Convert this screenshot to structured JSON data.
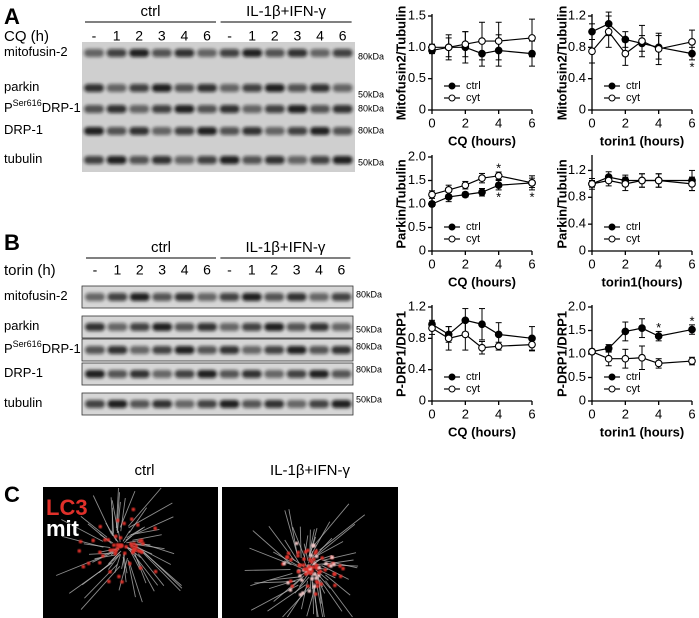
{
  "panels": {
    "A": {
      "letter": "A",
      "groups": [
        "ctrl",
        "IL-1β+IFN-γ"
      ],
      "time_label": "CQ (h)",
      "lanes": [
        "-",
        "1",
        "2",
        "3",
        "4",
        "6",
        "-",
        "1",
        "2",
        "3",
        "4",
        "6"
      ],
      "rows": [
        {
          "label": "mitofusin-2",
          "size": "80kDa"
        },
        {
          "label": "parkin",
          "size": "50kDa"
        },
        {
          "label_prefix": "P",
          "label_sup": "Ser616",
          "label": "DRP-1",
          "size": "80kDa"
        },
        {
          "label": "DRP-1",
          "size": "80kDa"
        },
        {
          "label": "tubulin",
          "size": "50kDa"
        }
      ]
    },
    "B": {
      "letter": "B",
      "groups": [
        "ctrl",
        "IL-1β+IFN-γ"
      ],
      "time_label": "torin (h)",
      "lanes": [
        "-",
        "1",
        "2",
        "3",
        "4",
        "6",
        "-",
        "1",
        "2",
        "3",
        "4",
        "6"
      ],
      "rows": [
        {
          "label": "mitofusin-2",
          "size": "80kDa"
        },
        {
          "label": "parkin",
          "size": "50kDa"
        },
        {
          "label_prefix": "P",
          "label_sup": "Ser616",
          "label": "DRP-1",
          "size": "80kDa"
        },
        {
          "label": "DRP-1",
          "size": "80kDa"
        },
        {
          "label": "tubulin",
          "size": "50kDa"
        }
      ]
    },
    "C": {
      "letter": "C",
      "images": [
        "ctrl",
        "IL-1β+IFN-γ"
      ],
      "stain_labels": [
        "LC3",
        "mit"
      ]
    }
  },
  "chart_data": [
    {
      "type": "line",
      "y_label": "Mitofusin2/Tubulin",
      "x_label": "CQ (hours)",
      "x": [
        0,
        1,
        2,
        3,
        4,
        6
      ],
      "xlim": [
        0,
        6
      ],
      "xticks": [
        0,
        2,
        4,
        6
      ],
      "ylim": [
        0,
        1.5
      ],
      "yticks": [
        0,
        0.5,
        {
          "value": 1,
          "label": "1.0"
        },
        1.5
      ],
      "legend": "lower center",
      "series": [
        {
          "name": "ctrl",
          "color": "#000000",
          "values": [
            0.95,
            1.0,
            1.0,
            0.9,
            0.95,
            0.9
          ],
          "errors": [
            0.05,
            0.2,
            0.25,
            0.2,
            0.25,
            0.2
          ]
        },
        {
          "name": "cyt",
          "color": "#ffffff",
          "values": [
            1.0,
            1.0,
            1.05,
            1.1,
            1.1,
            1.15
          ],
          "errors": [
            0.05,
            0.15,
            0.2,
            0.3,
            0.3,
            0.3
          ]
        }
      ],
      "annotations": []
    },
    {
      "type": "line",
      "y_label": "Mitofusin2/Tubulin",
      "x_label": "torin1 (hours)",
      "x": [
        0,
        1,
        2,
        3,
        4,
        6
      ],
      "xlim": [
        0,
        6
      ],
      "xticks": [
        0,
        2,
        4,
        6
      ],
      "ylim": [
        0,
        1.2
      ],
      "yticks": [
        0,
        0.4,
        0.8,
        1.2
      ],
      "legend": "lower center",
      "series": [
        {
          "name": "ctrl",
          "color": "#000000",
          "values": [
            1.0,
            1.1,
            0.9,
            0.85,
            0.8,
            0.72
          ],
          "errors": [
            0.1,
            0.15,
            0.1,
            0.1,
            0.15,
            0.08
          ]
        },
        {
          "name": "cyt",
          "color": "#ffffff",
          "values": [
            0.75,
            1.0,
            0.72,
            0.88,
            0.78,
            0.87
          ],
          "errors": [
            0.15,
            0.2,
            0.15,
            0.2,
            0.2,
            0.15
          ]
        }
      ],
      "annotations": [
        {
          "text": "*",
          "x": 6,
          "position": "below"
        }
      ]
    },
    {
      "type": "line",
      "y_label": "Parkin/Tubulin",
      "x_label": "CQ (hours)",
      "x": [
        0,
        1,
        2,
        3,
        4,
        6
      ],
      "xlim": [
        0,
        6
      ],
      "xticks": [
        0,
        2,
        4,
        6
      ],
      "ylim": [
        0,
        2
      ],
      "yticks": [
        0,
        0.5,
        {
          "value": 1,
          "label": "1.0"
        },
        1.5,
        {
          "value": 2,
          "label": "2.0"
        }
      ],
      "legend": "lower center",
      "series": [
        {
          "name": "ctrl",
          "color": "#000000",
          "values": [
            1.0,
            1.15,
            1.2,
            1.25,
            1.4,
            1.45
          ],
          "errors": [
            0.05,
            0.1,
            0.05,
            0.08,
            0.1,
            0.1
          ]
        },
        {
          "name": "cyt",
          "color": "#ffffff",
          "values": [
            1.2,
            1.3,
            1.4,
            1.55,
            1.6,
            1.45
          ],
          "errors": [
            0.08,
            0.1,
            0.08,
            0.1,
            0.08,
            0.15
          ]
        }
      ],
      "annotations": [
        {
          "text": "*",
          "x": 4,
          "position": "above"
        },
        {
          "text": "*",
          "x": 4,
          "position": "below"
        },
        {
          "text": "*",
          "x": 6,
          "position": "below"
        }
      ]
    },
    {
      "type": "line",
      "y_label": "Parkin/Tubulin",
      "x_label": "torin1(hours)",
      "x": [
        0,
        1,
        2,
        3,
        4,
        6
      ],
      "xlim": [
        0,
        6
      ],
      "xticks": [
        0,
        2,
        4,
        6
      ],
      "ylim": [
        0,
        1.4
      ],
      "yticks": [
        0,
        0.4,
        0.8,
        1.2
      ],
      "legend": "lower center",
      "series": [
        {
          "name": "ctrl",
          "color": "#000000",
          "values": [
            1.0,
            1.1,
            1.05,
            1.05,
            1.05,
            1.05
          ],
          "errors": [
            0.05,
            0.08,
            0.08,
            0.1,
            0.1,
            0.15
          ]
        },
        {
          "name": "cyt",
          "color": "#ffffff",
          "values": [
            1.0,
            1.05,
            1.0,
            1.05,
            1.05,
            1.0
          ],
          "errors": [
            0.08,
            0.08,
            0.1,
            0.1,
            0.1,
            0.1
          ]
        }
      ],
      "annotations": []
    },
    {
      "type": "line",
      "y_label": "P-DRP1/DRP1",
      "x_label": "CQ (hours)",
      "x": [
        0,
        1,
        2,
        3,
        4,
        6
      ],
      "xlim": [
        0,
        6
      ],
      "xticks": [
        0,
        2,
        4,
        6
      ],
      "ylim": [
        0,
        1.2
      ],
      "yticks": [
        0,
        0.4,
        0.8,
        1.2
      ],
      "legend": "lower center",
      "series": [
        {
          "name": "ctrl",
          "color": "#000000",
          "values": [
            0.98,
            0.85,
            1.03,
            0.98,
            0.85,
            0.8
          ],
          "errors": [
            0.05,
            0.1,
            0.15,
            0.2,
            0.15,
            0.15
          ]
        },
        {
          "name": "cyt",
          "color": "#ffffff",
          "values": [
            0.93,
            0.8,
            0.85,
            0.68,
            0.7,
            0.72
          ],
          "errors": [
            0.08,
            0.15,
            0.2,
            0.08,
            0.05,
            0.08
          ]
        }
      ],
      "annotations": []
    },
    {
      "type": "line",
      "y_label": "P-DRP1/DRP1",
      "x_label": "torin1 (hours)",
      "x": [
        0,
        1,
        2,
        3,
        4,
        6
      ],
      "xlim": [
        0,
        6
      ],
      "xticks": [
        0,
        2,
        4,
        6
      ],
      "ylim": [
        0,
        2
      ],
      "yticks": [
        0,
        0.5,
        {
          "value": 1,
          "label": "1.0"
        },
        1.5,
        {
          "value": 2,
          "label": "2.0"
        }
      ],
      "legend": "lower center",
      "series": [
        {
          "name": "ctrl",
          "color": "#000000",
          "values": [
            1.05,
            1.12,
            1.48,
            1.55,
            1.38,
            1.52
          ],
          "errors": [
            0.05,
            0.08,
            0.2,
            0.2,
            0.1,
            0.1
          ]
        },
        {
          "name": "cyt",
          "color": "#ffffff",
          "values": [
            1.05,
            0.9,
            0.9,
            0.92,
            0.8,
            0.85
          ],
          "errors": [
            0.05,
            0.15,
            0.2,
            0.25,
            0.1,
            0.08
          ]
        }
      ],
      "annotations": [
        {
          "text": "*",
          "x": 4,
          "position": "above"
        },
        {
          "text": "*",
          "x": 6,
          "position": "above"
        }
      ]
    }
  ]
}
